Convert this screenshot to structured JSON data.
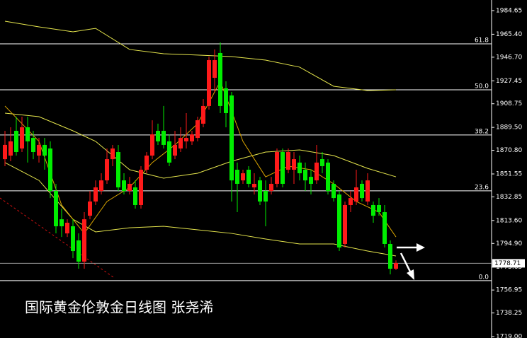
{
  "chart_data": {
    "type": "candlestick",
    "title": "国际黄金伦敦金日线图  张尧浠",
    "ylim": [
      1717.85,
      1993.3
    ],
    "yticks": [
      1984.65,
      {
        "value": 1965.4,
        "label": "1965.40"
      },
      {
        "value": 1946.7,
        "label": "1946.70"
      },
      {
        "value": 1927.45,
        "label": "1927.45"
      },
      1908.75,
      {
        "value": 1889.5,
        "label": "1889.50"
      },
      {
        "value": 1870.8,
        "label": "1870.80"
      },
      1851.55,
      1832.85,
      {
        "value": 1813.6,
        "label": "1813.60"
      },
      {
        "value": 1794.9,
        "label": "1794.90"
      },
      1775.65,
      1756.95,
      1738.25,
      {
        "value": 1719.0,
        "label": "1719.00"
      }
    ],
    "up_color": "#ff1a1a",
    "down_color": "#00ee00",
    "open": [
      1863.6,
      1866.5,
      1886.7,
      1872.3,
      1889.6,
      1880.9,
      1866.5,
      1875.2,
      1872.3,
      1837.7,
      1814.6,
      1803.1,
      1808.9,
      1797.4,
      1780.1,
      1817.5,
      1829.1,
      1837.7,
      1846.3,
      1863.6,
      1869.4,
      1846.3,
      1837.7,
      1840.6,
      1826.2,
      1855.0,
      1866.5,
      1886.7,
      1886.7,
      1878.1,
      1866.5,
      1872.3,
      1878.1,
      1878.1,
      1880.9,
      1892.5,
      1906.9,
      1929.9,
      1950.1,
      1921.3,
      1915.5,
      1855.0,
      1846.3,
      1855.0,
      1840.6,
      1846.3,
      1837.7,
      1837.7,
      1843.5,
      1869.4,
      1855.0,
      1855.0,
      1860.8,
      1855.0,
      1849.2,
      1846.3,
      1863.6,
      1860.8,
      1843.5,
      1834.8,
      1794.5,
      1826.2,
      1829.1,
      1843.5,
      1829.1,
      1826.2,
      1826.2,
      1820.4,
      1794.5,
      1774.3
    ],
    "high": [
      1886.7,
      1889.6,
      1898.2,
      1898.2,
      1898.2,
      1886.7,
      1880.9,
      1880.9,
      1878.1,
      1843.5,
      1823.3,
      1814.6,
      1814.6,
      1803.1,
      1820.4,
      1837.7,
      1846.3,
      1852.1,
      1872.3,
      1875.2,
      1875.2,
      1852.1,
      1849.2,
      1846.3,
      1857.9,
      1869.4,
      1895.3,
      1892.5,
      1906.9,
      1883.8,
      1886.7,
      1889.6,
      1901.1,
      1886.7,
      1898.2,
      1912.6,
      1947.2,
      1953.0,
      1958.7,
      1927.0,
      1918.4,
      1860.8,
      1855.0,
      1857.9,
      1852.1,
      1849.2,
      1846.3,
      1849.2,
      1872.3,
      1872.3,
      1872.3,
      1869.4,
      1866.5,
      1860.8,
      1855.0,
      1875.2,
      1869.4,
      1863.6,
      1846.3,
      1837.7,
      1829.1,
      1837.7,
      1855.0,
      1846.3,
      1852.1,
      1829.1,
      1831.9,
      1826.2,
      1797.4,
      1781.2
    ],
    "low": [
      1857.9,
      1861.9,
      1866.5,
      1869.4,
      1860.8,
      1863.6,
      1860.8,
      1855.0,
      1831.9,
      1803.1,
      1800.2,
      1800.2,
      1782.9,
      1774.3,
      1774.3,
      1814.6,
      1826.2,
      1834.8,
      1843.5,
      1857.9,
      1837.7,
      1834.8,
      1834.8,
      1823.3,
      1823.3,
      1852.1,
      1863.6,
      1875.2,
      1872.3,
      1857.9,
      1863.6,
      1869.4,
      1872.3,
      1875.2,
      1878.1,
      1889.6,
      1904.0,
      1918.4,
      1901.1,
      1889.6,
      1829.1,
      1820.4,
      1843.5,
      1840.6,
      1834.8,
      1826.2,
      1808.9,
      1834.8,
      1840.6,
      1840.6,
      1852.1,
      1843.5,
      1846.3,
      1837.7,
      1834.8,
      1843.5,
      1852.1,
      1834.8,
      1829.1,
      1788.7,
      1791.6,
      1820.4,
      1826.2,
      1829.1,
      1826.2,
      1811.8,
      1817.5,
      1791.6,
      1769.7,
      1773.2
    ],
    "close": [
      1875.2,
      1878.1,
      1869.4,
      1889.6,
      1878.1,
      1869.4,
      1875.2,
      1866.5,
      1837.7,
      1808.9,
      1808.9,
      1811.8,
      1788.7,
      1780.1,
      1814.6,
      1829.1,
      1840.6,
      1846.3,
      1863.6,
      1872.3,
      1840.6,
      1837.7,
      1843.5,
      1826.2,
      1855.0,
      1866.5,
      1883.8,
      1878.1,
      1875.2,
      1860.8,
      1875.2,
      1880.9,
      1880.9,
      1883.8,
      1895.3,
      1906.9,
      1944.3,
      1944.3,
      1906.9,
      1901.1,
      1846.3,
      1843.5,
      1852.1,
      1843.5,
      1843.5,
      1829.1,
      1829.1,
      1843.5,
      1869.4,
      1843.5,
      1869.4,
      1863.6,
      1852.1,
      1846.3,
      1843.5,
      1860.8,
      1857.9,
      1837.7,
      1831.9,
      1791.6,
      1826.2,
      1831.9,
      1840.6,
      1831.9,
      1846.3,
      1817.5,
      1820.4,
      1794.5,
      1774.3,
      1778.9
    ],
    "lines": [
      {
        "color": "#e6e64d",
        "x": [
          0,
          6,
          12,
          16,
          22,
          28,
          34,
          40,
          46,
          52,
          58,
          64,
          69
        ],
        "values": [
          1976.0,
          1971.4,
          1967.4,
          1970.2,
          1953.0,
          1949.5,
          1948.4,
          1947.2,
          1944.3,
          1938.6,
          1923.0,
          1919.5,
          1920.1
        ]
      },
      {
        "color": "#e6e64d",
        "x": [
          0,
          6,
          12,
          16,
          22,
          28,
          34,
          40,
          46,
          52,
          58,
          64,
          69
        ],
        "values": [
          1901.1,
          1898.2,
          1886.7,
          1878.1,
          1855.0,
          1848.1,
          1852.1,
          1861.9,
          1869.4,
          1871.1,
          1866.5,
          1856.1,
          1849.2
        ]
      },
      {
        "color": "#e6e64d",
        "x": [
          0,
          6,
          12,
          16,
          22,
          28,
          34,
          40,
          46,
          52,
          58,
          64,
          69
        ],
        "values": [
          1860.8,
          1846.3,
          1814.6,
          1804.3,
          1807.7,
          1808.9,
          1806.0,
          1803.1,
          1798.5,
          1794.5,
          1794.5,
          1788.7,
          1784.7
        ]
      },
      {
        "color": "#d9a400",
        "x": [
          0,
          6,
          10,
          14,
          18,
          22,
          26,
          30,
          34,
          38,
          42,
          46,
          50,
          54,
          58,
          62,
          66,
          69
        ],
        "values": [
          1906.9,
          1878.1,
          1826.2,
          1803.1,
          1829.1,
          1840.6,
          1860.8,
          1875.2,
          1892.5,
          1927.0,
          1878.1,
          1849.2,
          1857.9,
          1855.0,
          1843.5,
          1829.1,
          1820.4,
          1800.2
        ]
      }
    ],
    "fib_levels": [
      {
        "label": "61.8",
        "price": 1957.6
      },
      {
        "label": "50.0",
        "price": 1920.1
      },
      {
        "label": "38.2",
        "price": 1883.3
      },
      {
        "label": "23.6",
        "price": 1837.8
      },
      {
        "label": "0.0",
        "price": 1764.6
      }
    ],
    "last_price": 1778.71
  }
}
